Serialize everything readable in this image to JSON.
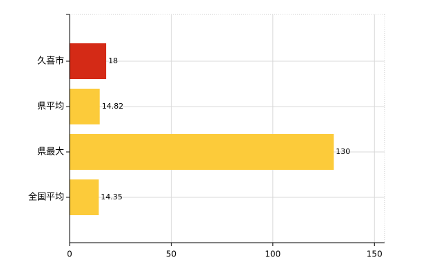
{
  "chart_data": {
    "type": "bar",
    "orientation": "horizontal",
    "categories": [
      "久喜市",
      "県平均",
      "県最大",
      "全国平均"
    ],
    "values": [
      18,
      14.82,
      130,
      14.35
    ],
    "colors": [
      "#d42a16",
      "#fccb3a",
      "#fccb3a",
      "#fccb3a"
    ],
    "xlim": [
      0,
      155
    ],
    "xticks": [
      0,
      50,
      100,
      150
    ],
    "grid": true
  }
}
